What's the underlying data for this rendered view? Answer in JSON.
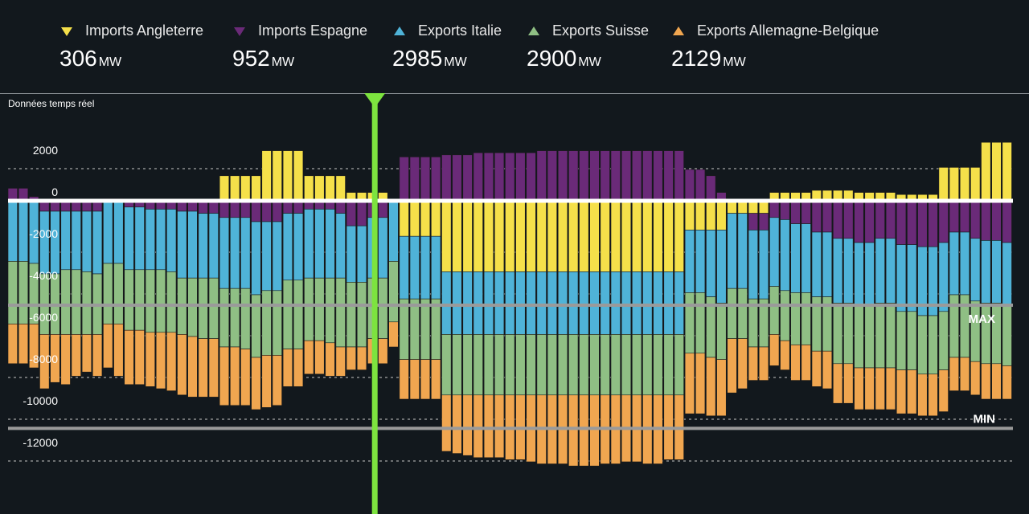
{
  "legend": [
    {
      "label": "Imports Angleterre",
      "value": "306",
      "unit": "MW",
      "color": "#f5e04a",
      "dir": "down",
      "icon": "triangle-down-icon"
    },
    {
      "label": "Imports Espagne",
      "value": "952",
      "unit": "MW",
      "color": "#6a2a78",
      "dir": "down",
      "icon": "triangle-down-icon"
    },
    {
      "label": "Exports Italie",
      "value": "2985",
      "unit": "MW",
      "color": "#4fb3d8",
      "dir": "up",
      "icon": "triangle-up-icon"
    },
    {
      "label": "Exports Suisse",
      "value": "2900",
      "unit": "MW",
      "color": "#8fbf84",
      "dir": "up",
      "icon": "triangle-up-icon"
    },
    {
      "label": "Exports Allemagne-Belgique",
      "value": "2129",
      "unit": "MW",
      "color": "#f0a650",
      "dir": "up",
      "icon": "triangle-up-icon"
    }
  ],
  "chart_title": "Données temps réel",
  "chart_data": {
    "type": "bar",
    "stacked": true,
    "title": "Données temps réel",
    "ylim": [
      -13000,
      2600
    ],
    "yticks": [
      2000,
      0,
      -2000,
      -4000,
      -6000,
      -8000,
      -10000,
      -12000
    ],
    "ytick_labels": [
      "2000",
      "0",
      "-2000",
      "-4000",
      "-6000",
      "-8000",
      "-10000",
      "-12000"
    ],
    "reference_lines": [
      {
        "label": "MAX",
        "value": -5000
      },
      {
        "label": "MIN",
        "value": -10900
      }
    ],
    "cursor_index": 34,
    "bar_count": 95,
    "series": [
      {
        "name": "Imports Angleterre",
        "color": "#f5e04a",
        "values": [
          0,
          0,
          0,
          0,
          0,
          0,
          0,
          0,
          0,
          0,
          0,
          0,
          0,
          0,
          0,
          0,
          0,
          0,
          0,
          0,
          1200,
          1200,
          1200,
          1200,
          2400,
          2400,
          2400,
          2400,
          1200,
          1200,
          1200,
          1200,
          400,
          400,
          400,
          400,
          0,
          -1700,
          -1700,
          -1700,
          -1700,
          -3400,
          -3400,
          -3400,
          -3400,
          -3400,
          -3400,
          -3400,
          -3400,
          -3400,
          -3400,
          -3400,
          -3400,
          -3400,
          -3400,
          -3400,
          -3400,
          -3400,
          -3400,
          -3400,
          -3400,
          -3400,
          -3400,
          -3400,
          -1400,
          -1400,
          -1400,
          -1400,
          -600,
          -600,
          -600,
          -600,
          400,
          400,
          400,
          400,
          500,
          500,
          500,
          500,
          400,
          400,
          400,
          400,
          300,
          300,
          300,
          300,
          1600,
          1600,
          1600,
          1600,
          2800,
          2800,
          2800
        ]
      },
      {
        "name": "Imports Espagne",
        "color": "#6a2a78",
        "values": [
          600,
          600,
          200,
          -500,
          -500,
          -500,
          -500,
          -500,
          -500,
          100,
          100,
          -300,
          -300,
          -400,
          -400,
          -400,
          -500,
          -500,
          -600,
          -600,
          -800,
          -800,
          -800,
          -1000,
          -1000,
          -1000,
          -600,
          -600,
          -400,
          -400,
          -400,
          -600,
          -1200,
          -1200,
          -800,
          -800,
          0,
          2100,
          2100,
          2100,
          2100,
          2200,
          2200,
          2200,
          2300,
          2300,
          2300,
          2300,
          2300,
          2300,
          2400,
          2400,
          2400,
          2400,
          2400,
          2400,
          2400,
          2400,
          2400,
          2400,
          2400,
          2400,
          2400,
          2400,
          1500,
          1500,
          1200,
          400,
          0,
          0,
          -800,
          -800,
          -800,
          -900,
          -1100,
          -1100,
          -1500,
          -1500,
          -1800,
          -1800,
          -2000,
          -2000,
          -1800,
          -1800,
          -2100,
          -2100,
          -2200,
          -2200,
          -2000,
          -1500,
          -1500,
          -1800,
          -1900,
          -1900,
          -2000
        ]
      },
      {
        "name": "Exports Italie",
        "color": "#4fb3d8",
        "values": [
          -2900,
          -2900,
          -3000,
          -3000,
          -3000,
          -2800,
          -2800,
          -2900,
          -3000,
          -3000,
          -3000,
          -3000,
          -3000,
          -2900,
          -2900,
          -3000,
          -3200,
          -3200,
          -3100,
          -3100,
          -3400,
          -3400,
          -3400,
          -3500,
          -3300,
          -3300,
          -3200,
          -3200,
          -3300,
          -3300,
          -3300,
          -3100,
          -2700,
          -2700,
          -2900,
          -2900,
          -2900,
          -3000,
          -3000,
          -3000,
          -3000,
          -3000,
          -3000,
          -3000,
          -3000,
          -3000,
          -3000,
          -3000,
          -3000,
          -3000,
          -3000,
          -3000,
          -3000,
          -3000,
          -3000,
          -3000,
          -3000,
          -3000,
          -3000,
          -3000,
          -3000,
          -3000,
          -3000,
          -3000,
          -3000,
          -3000,
          -3200,
          -3500,
          -3600,
          -3600,
          -3300,
          -3300,
          -3300,
          -3400,
          -3300,
          -3300,
          -3100,
          -3100,
          -3100,
          -3100,
          -3000,
          -3000,
          -3100,
          -3100,
          -3200,
          -3200,
          -3300,
          -3300,
          -3300,
          -3000,
          -3000,
          -3000,
          -3000,
          -3000,
          -3000
        ]
      },
      {
        "name": "Exports Suisse",
        "color": "#8fbf84",
        "values": [
          -3000,
          -3000,
          -2900,
          -2900,
          -2900,
          -3100,
          -3100,
          -3000,
          -2900,
          -2900,
          -2900,
          -2900,
          -2900,
          -3000,
          -3000,
          -2900,
          -2700,
          -2800,
          -2900,
          -2900,
          -2800,
          -2800,
          -2900,
          -3000,
          -3100,
          -3100,
          -3300,
          -3300,
          -3000,
          -3000,
          -3100,
          -3300,
          -3100,
          -3100,
          -2900,
          -2900,
          -2900,
          -2900,
          -2900,
          -2900,
          -2900,
          -2900,
          -2900,
          -2900,
          -2900,
          -2900,
          -2900,
          -2900,
          -2900,
          -2900,
          -2900,
          -2900,
          -2900,
          -2900,
          -2900,
          -2900,
          -2900,
          -2900,
          -2900,
          -2900,
          -2900,
          -2900,
          -2900,
          -2900,
          -2900,
          -2900,
          -2900,
          -2700,
          -2400,
          -2400,
          -2300,
          -2300,
          -2300,
          -2400,
          -2500,
          -2500,
          -2600,
          -2600,
          -2900,
          -2900,
          -3000,
          -3000,
          -3100,
          -3100,
          -2800,
          -2800,
          -2800,
          -2800,
          -2800,
          -3000,
          -3000,
          -2900,
          -2900,
          -2900,
          -2900
        ]
      },
      {
        "name": "Exports Allemagne-Belgique",
        "color": "#f0a650",
        "values": [
          -1900,
          -1900,
          -2100,
          -2600,
          -2300,
          -2400,
          -2000,
          -1800,
          -2000,
          -2100,
          -2500,
          -2600,
          -2600,
          -2600,
          -2700,
          -2800,
          -2900,
          -2900,
          -2800,
          -2800,
          -2800,
          -2800,
          -2700,
          -2500,
          -2500,
          -2400,
          -1800,
          -1800,
          -1600,
          -1600,
          -1600,
          -1400,
          -1100,
          -1100,
          -1200,
          -1200,
          -1200,
          -1900,
          -1900,
          -1900,
          -1900,
          -2700,
          -2800,
          -2900,
          -3000,
          -3000,
          -3000,
          -3100,
          -3100,
          -3200,
          -3300,
          -3300,
          -3300,
          -3400,
          -3400,
          -3400,
          -3300,
          -3300,
          -3200,
          -3200,
          -3300,
          -3300,
          -3100,
          -3100,
          -2900,
          -2900,
          -2800,
          -2700,
          -2600,
          -2400,
          -1600,
          -1600,
          -1500,
          -1400,
          -1700,
          -1700,
          -1700,
          -1800,
          -1900,
          -1900,
          -2000,
          -2000,
          -2000,
          -2000,
          -2100,
          -2100,
          -2000,
          -2000,
          -2000,
          -1600,
          -1600,
          -1600,
          -1700,
          -1700,
          -1600
        ]
      }
    ]
  }
}
